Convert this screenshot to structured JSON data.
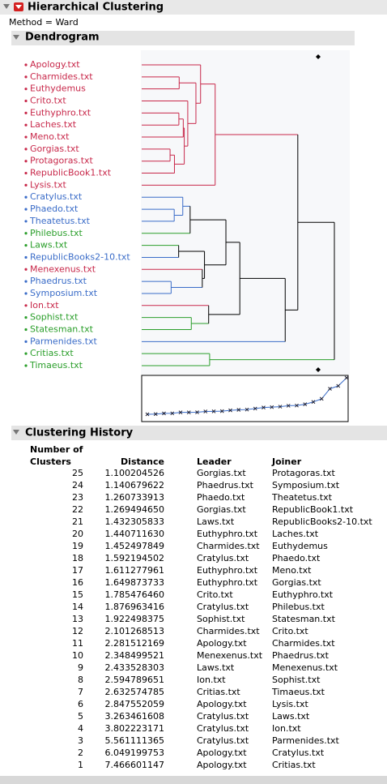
{
  "header": {
    "title": "Hierarchical Clustering",
    "method": "Method = Ward"
  },
  "dendrogram": {
    "title": "Dendrogram",
    "leaves": [
      {
        "label": "Apology.txt",
        "color": "#c8284a"
      },
      {
        "label": "Charmides.txt",
        "color": "#c8284a"
      },
      {
        "label": "Euthydemus",
        "color": "#c8284a"
      },
      {
        "label": "Crito.txt",
        "color": "#c8284a"
      },
      {
        "label": "Euthyphro.txt",
        "color": "#c8284a"
      },
      {
        "label": "Laches.txt",
        "color": "#c8284a"
      },
      {
        "label": "Meno.txt",
        "color": "#c8284a"
      },
      {
        "label": "Gorgias.txt",
        "color": "#c8284a"
      },
      {
        "label": "Protagoras.txt",
        "color": "#c8284a"
      },
      {
        "label": "RepublicBook1.txt",
        "color": "#c8284a"
      },
      {
        "label": "Lysis.txt",
        "color": "#c8284a"
      },
      {
        "label": "Cratylus.txt",
        "color": "#3a6cc8"
      },
      {
        "label": "Phaedo.txt",
        "color": "#3a6cc8"
      },
      {
        "label": "Theatetus.txt",
        "color": "#3a6cc8"
      },
      {
        "label": "Philebus.txt",
        "color": "#2a9e2a"
      },
      {
        "label": "Laws.txt",
        "color": "#2a9e2a"
      },
      {
        "label": "RepublicBooks2-10.txt",
        "color": "#3a6cc8"
      },
      {
        "label": "Menexenus.txt",
        "color": "#c8284a"
      },
      {
        "label": "Phaedrus.txt",
        "color": "#3a6cc8"
      },
      {
        "label": "Symposium.txt",
        "color": "#3a6cc8"
      },
      {
        "label": "Ion.txt",
        "color": "#c8284a"
      },
      {
        "label": "Sophist.txt",
        "color": "#2a9e2a"
      },
      {
        "label": "Statesman.txt",
        "color": "#2a9e2a"
      },
      {
        "label": "Parmenides.txt",
        "color": "#3a6cc8"
      },
      {
        "label": "Critias.txt",
        "color": "#2a9e2a"
      },
      {
        "label": "Timaeus.txt",
        "color": "#2a9e2a"
      }
    ]
  },
  "history": {
    "title": "Clustering History",
    "columns": [
      "Number of Clusters",
      "Distance",
      "Leader",
      "Joiner"
    ],
    "rows": [
      [
        25,
        "1.100204526",
        "Gorgias.txt",
        "Protagoras.txt"
      ],
      [
        24,
        "1.140679622",
        "Phaedrus.txt",
        "Symposium.txt"
      ],
      [
        23,
        "1.260733913",
        "Phaedo.txt",
        "Theatetus.txt"
      ],
      [
        22,
        "1.269494650",
        "Gorgias.txt",
        "RepublicBook1.txt"
      ],
      [
        21,
        "1.432305833",
        "Laws.txt",
        "RepublicBooks2-10.txt"
      ],
      [
        20,
        "1.440711630",
        "Euthyphro.txt",
        "Laches.txt"
      ],
      [
        19,
        "1.452497849",
        "Charmides.txt",
        "Euthydemus"
      ],
      [
        18,
        "1.592194502",
        "Cratylus.txt",
        "Phaedo.txt"
      ],
      [
        17,
        "1.611277961",
        "Euthyphro.txt",
        "Meno.txt"
      ],
      [
        16,
        "1.649873733",
        "Euthyphro.txt",
        "Gorgias.txt"
      ],
      [
        15,
        "1.785476460",
        "Crito.txt",
        "Euthyphro.txt"
      ],
      [
        14,
        "1.876963416",
        "Cratylus.txt",
        "Philebus.txt"
      ],
      [
        13,
        "1.922498375",
        "Sophist.txt",
        "Statesman.txt"
      ],
      [
        12,
        "2.101268513",
        "Charmides.txt",
        "Crito.txt"
      ],
      [
        11,
        "2.281512169",
        "Apology.txt",
        "Charmides.txt"
      ],
      [
        10,
        "2.348499521",
        "Menexenus.txt",
        "Phaedrus.txt"
      ],
      [
        9,
        "2.433528303",
        "Laws.txt",
        "Menexenus.txt"
      ],
      [
        8,
        "2.594789651",
        "Ion.txt",
        "Sophist.txt"
      ],
      [
        7,
        "2.632574785",
        "Critias.txt",
        "Timaeus.txt"
      ],
      [
        6,
        "2.847552059",
        "Apology.txt",
        "Lysis.txt"
      ],
      [
        5,
        "3.263461608",
        "Cratylus.txt",
        "Laws.txt"
      ],
      [
        4,
        "3.802223171",
        "Cratylus.txt",
        "Ion.txt"
      ],
      [
        3,
        "5.561111365",
        "Cratylus.txt",
        "Parmenides.txt"
      ],
      [
        2,
        "6.049199753",
        "Apology.txt",
        "Cratylus.txt"
      ],
      [
        1,
        "7.466601147",
        "Apology.txt",
        "Critias.txt"
      ]
    ]
  }
}
